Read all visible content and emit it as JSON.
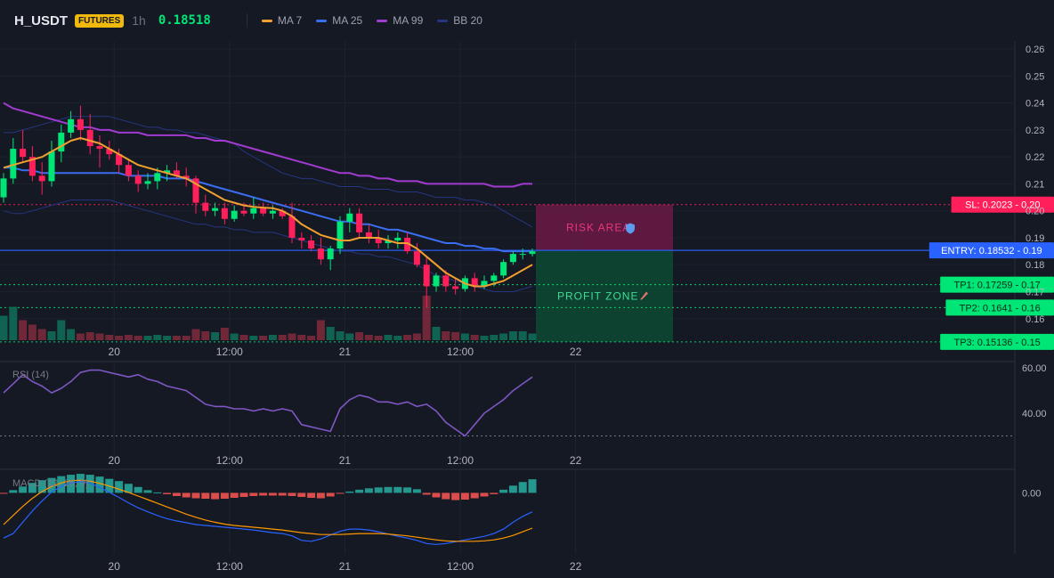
{
  "header": {
    "symbol": "H_USDT",
    "badge": "FUTURES",
    "timeframe": "1h",
    "price": "0.18518",
    "legend": [
      {
        "name": "MA 7",
        "color": "#f0a030"
      },
      {
        "name": "MA 25",
        "color": "#3a6df0"
      },
      {
        "name": "MA 99",
        "color": "#a23bd0"
      },
      {
        "name": "BB 20",
        "color": "#263580"
      }
    ]
  },
  "price_axis": {
    "ticks": [
      "0.26",
      "0.25",
      "0.24",
      "0.23",
      "0.22",
      "0.21",
      "0.20",
      "0.19",
      "0.18",
      "0.17",
      "0.16"
    ]
  },
  "time_axis": {
    "ticks": [
      "20",
      "12:00",
      "21",
      "12:00",
      "22"
    ]
  },
  "zones": {
    "risk_label": "RISK AREA",
    "profit_label": "PROFIT ZONE",
    "risk_color": "#6a1a45",
    "profit_color": "#0d4a33"
  },
  "levels": {
    "sl": {
      "label": "SL: 0.2023 - 0.20",
      "value": 0.2023,
      "color": "#ff1f5a"
    },
    "entry": {
      "label": "ENTRY: 0.18532 - 0.19",
      "value": 0.18532,
      "color": "#2962ff"
    },
    "tp": [
      {
        "label": "TP1: 0.17259 - 0.17",
        "value": 0.17259,
        "color": "#00e676"
      },
      {
        "label": "TP2: 0.1641 - 0.16",
        "value": 0.1641,
        "color": "#00e676"
      },
      {
        "label": "TP3: 0.15136 - 0.15",
        "value": 0.15136,
        "color": "#00e676"
      }
    ]
  },
  "rsi": {
    "label": "RSI (14)",
    "ticks": [
      "60.00",
      "40.00"
    ],
    "color": "#7e57c2"
  },
  "macd": {
    "label": "MACD (12, 26, 9)",
    "ticks": [
      "0.00"
    ]
  },
  "chart_data": {
    "type": "candlestick",
    "price_range": [
      0.152,
      0.263
    ],
    "candles": [
      [
        0.205,
        0.214,
        0.203,
        0.212
      ],
      [
        0.212,
        0.227,
        0.21,
        0.223
      ],
      [
        0.223,
        0.23,
        0.218,
        0.22
      ],
      [
        0.22,
        0.224,
        0.211,
        0.213
      ],
      [
        0.213,
        0.218,
        0.206,
        0.211
      ],
      [
        0.211,
        0.226,
        0.209,
        0.222
      ],
      [
        0.222,
        0.232,
        0.218,
        0.229
      ],
      [
        0.229,
        0.237,
        0.227,
        0.234
      ],
      [
        0.234,
        0.239,
        0.226,
        0.23
      ],
      [
        0.23,
        0.236,
        0.221,
        0.224
      ],
      [
        0.224,
        0.228,
        0.216,
        0.223
      ],
      [
        0.223,
        0.226,
        0.219,
        0.221
      ],
      [
        0.221,
        0.223,
        0.214,
        0.217
      ],
      [
        0.217,
        0.219,
        0.211,
        0.213
      ],
      [
        0.213,
        0.215,
        0.207,
        0.21
      ],
      [
        0.21,
        0.214,
        0.208,
        0.211
      ],
      [
        0.211,
        0.216,
        0.208,
        0.214
      ],
      [
        0.214,
        0.217,
        0.211,
        0.215
      ],
      [
        0.215,
        0.218,
        0.212,
        0.213
      ],
      [
        0.213,
        0.216,
        0.209,
        0.212
      ],
      [
        0.212,
        0.213,
        0.199,
        0.203
      ],
      [
        0.203,
        0.206,
        0.198,
        0.2
      ],
      [
        0.2,
        0.203,
        0.198,
        0.201
      ],
      [
        0.201,
        0.203,
        0.195,
        0.197
      ],
      [
        0.197,
        0.202,
        0.196,
        0.2
      ],
      [
        0.2,
        0.203,
        0.198,
        0.199
      ],
      [
        0.199,
        0.205,
        0.197,
        0.201
      ],
      [
        0.201,
        0.203,
        0.198,
        0.199
      ],
      [
        0.199,
        0.202,
        0.197,
        0.2
      ],
      [
        0.2,
        0.201,
        0.197,
        0.198
      ],
      [
        0.198,
        0.203,
        0.188,
        0.19
      ],
      [
        0.19,
        0.192,
        0.186,
        0.189
      ],
      [
        0.189,
        0.191,
        0.185,
        0.186
      ],
      [
        0.186,
        0.19,
        0.18,
        0.182
      ],
      [
        0.182,
        0.187,
        0.178,
        0.186
      ],
      [
        0.186,
        0.198,
        0.184,
        0.196
      ],
      [
        0.196,
        0.201,
        0.192,
        0.199
      ],
      [
        0.199,
        0.201,
        0.19,
        0.192
      ],
      [
        0.192,
        0.195,
        0.188,
        0.19
      ],
      [
        0.19,
        0.193,
        0.186,
        0.188
      ],
      [
        0.188,
        0.191,
        0.186,
        0.189
      ],
      [
        0.189,
        0.192,
        0.186,
        0.19
      ],
      [
        0.19,
        0.192,
        0.184,
        0.185
      ],
      [
        0.185,
        0.188,
        0.179,
        0.18
      ],
      [
        0.18,
        0.183,
        0.164,
        0.172
      ],
      [
        0.172,
        0.177,
        0.17,
        0.176
      ],
      [
        0.176,
        0.178,
        0.17,
        0.172
      ],
      [
        0.172,
        0.175,
        0.169,
        0.171
      ],
      [
        0.171,
        0.176,
        0.17,
        0.175
      ],
      [
        0.175,
        0.177,
        0.17,
        0.172
      ],
      [
        0.172,
        0.176,
        0.171,
        0.174
      ],
      [
        0.174,
        0.177,
        0.172,
        0.176
      ],
      [
        0.176,
        0.182,
        0.175,
        0.181
      ],
      [
        0.181,
        0.185,
        0.18,
        0.184
      ],
      [
        0.184,
        0.186,
        0.182,
        0.184
      ],
      [
        0.184,
        0.186,
        0.183,
        0.185
      ]
    ],
    "volume": [
      0.55,
      0.75,
      0.45,
      0.35,
      0.25,
      0.2,
      0.45,
      0.25,
      0.15,
      0.18,
      0.15,
      0.12,
      0.1,
      0.12,
      0.1,
      0.1,
      0.12,
      0.1,
      0.1,
      0.1,
      0.25,
      0.2,
      0.18,
      0.28,
      0.15,
      0.12,
      0.1,
      0.1,
      0.12,
      0.12,
      0.15,
      0.12,
      0.1,
      0.45,
      0.3,
      0.2,
      0.15,
      0.18,
      0.12,
      0.1,
      0.12,
      0.1,
      0.12,
      0.15,
      1.0,
      0.3,
      0.2,
      0.18,
      0.15,
      0.12,
      0.1,
      0.12,
      0.15,
      0.2,
      0.2,
      0.15
    ],
    "ma7": [
      0.216,
      0.217,
      0.218,
      0.219,
      0.22,
      0.222,
      0.224,
      0.226,
      0.227,
      0.226,
      0.225,
      0.223,
      0.221,
      0.219,
      0.217,
      0.216,
      0.215,
      0.214,
      0.213,
      0.212,
      0.21,
      0.208,
      0.206,
      0.204,
      0.203,
      0.202,
      0.2015,
      0.2012,
      0.201,
      0.2,
      0.198,
      0.195,
      0.193,
      0.191,
      0.19,
      0.189,
      0.189,
      0.19,
      0.19,
      0.19,
      0.189,
      0.188,
      0.188,
      0.186,
      0.183,
      0.18,
      0.177,
      0.175,
      0.173,
      0.172,
      0.172,
      0.173,
      0.174,
      0.176,
      0.178,
      0.18
    ],
    "ma25": [
      0.216,
      0.216,
      0.215,
      0.215,
      0.214,
      0.214,
      0.214,
      0.214,
      0.214,
      0.214,
      0.214,
      0.214,
      0.214,
      0.213,
      0.213,
      0.213,
      0.213,
      0.212,
      0.212,
      0.212,
      0.211,
      0.21,
      0.209,
      0.208,
      0.207,
      0.206,
      0.205,
      0.204,
      0.203,
      0.202,
      0.201,
      0.2,
      0.199,
      0.198,
      0.197,
      0.196,
      0.196,
      0.195,
      0.195,
      0.194,
      0.193,
      0.193,
      0.192,
      0.191,
      0.19,
      0.189,
      0.188,
      0.188,
      0.187,
      0.187,
      0.186,
      0.186,
      0.185,
      0.185,
      0.185,
      0.185
    ],
    "ma99": [
      0.24,
      0.238,
      0.237,
      0.236,
      0.235,
      0.234,
      0.233,
      0.232,
      0.231,
      0.231,
      0.23,
      0.23,
      0.229,
      0.229,
      0.229,
      0.228,
      0.228,
      0.228,
      0.228,
      0.228,
      0.227,
      0.227,
      0.226,
      0.226,
      0.225,
      0.224,
      0.223,
      0.222,
      0.221,
      0.22,
      0.219,
      0.218,
      0.217,
      0.216,
      0.215,
      0.214,
      0.214,
      0.213,
      0.213,
      0.212,
      0.212,
      0.211,
      0.211,
      0.211,
      0.21,
      0.21,
      0.21,
      0.21,
      0.21,
      0.21,
      0.21,
      0.209,
      0.209,
      0.209,
      0.21,
      0.21
    ],
    "bb_upper": [
      0.229,
      0.229,
      0.23,
      0.231,
      0.232,
      0.233,
      0.234,
      0.235,
      0.235,
      0.235,
      0.235,
      0.235,
      0.234,
      0.233,
      0.232,
      0.231,
      0.231,
      0.23,
      0.23,
      0.229,
      0.229,
      0.228,
      0.227,
      0.226,
      0.225,
      0.222,
      0.22,
      0.218,
      0.216,
      0.214,
      0.213,
      0.212,
      0.212,
      0.211,
      0.21,
      0.209,
      0.209,
      0.209,
      0.208,
      0.208,
      0.208,
      0.207,
      0.207,
      0.207,
      0.206,
      0.205,
      0.205,
      0.205,
      0.204,
      0.204,
      0.203,
      0.202,
      0.2,
      0.198,
      0.196,
      0.194
    ],
    "bb_lower": [
      0.2,
      0.199,
      0.199,
      0.2,
      0.201,
      0.202,
      0.203,
      0.204,
      0.204,
      0.204,
      0.204,
      0.204,
      0.203,
      0.202,
      0.201,
      0.2,
      0.199,
      0.198,
      0.197,
      0.196,
      0.195,
      0.195,
      0.194,
      0.194,
      0.193,
      0.193,
      0.192,
      0.192,
      0.192,
      0.191,
      0.19,
      0.189,
      0.188,
      0.187,
      0.186,
      0.185,
      0.185,
      0.184,
      0.184,
      0.183,
      0.183,
      0.182,
      0.181,
      0.18,
      0.178,
      0.176,
      0.175,
      0.174,
      0.173,
      0.172,
      0.171,
      0.17,
      0.17,
      0.17,
      0.171,
      0.172
    ],
    "rsi_values": [
      49,
      53,
      57,
      54,
      52,
      49,
      51,
      54,
      58,
      59,
      59,
      58,
      57,
      56,
      57,
      55,
      54,
      52,
      51,
      50,
      47,
      44,
      43,
      43,
      42,
      42,
      41,
      42,
      41,
      42,
      41,
      35,
      34,
      33,
      32,
      42,
      46,
      48,
      47,
      45,
      45,
      44,
      45,
      43,
      44,
      41,
      36,
      33,
      30,
      35,
      40,
      43,
      46,
      50,
      53,
      56
    ],
    "rsi_range": [
      20,
      62
    ],
    "macd_hist": [
      -0.02,
      0.06,
      0.14,
      0.22,
      0.28,
      0.33,
      0.37,
      0.4,
      0.42,
      0.4,
      0.36,
      0.31,
      0.26,
      0.2,
      0.13,
      0.06,
      0.01,
      -0.03,
      -0.07,
      -0.1,
      -0.12,
      -0.13,
      -0.14,
      -0.13,
      -0.11,
      -0.09,
      -0.07,
      -0.06,
      -0.06,
      -0.06,
      -0.07,
      -0.09,
      -0.11,
      -0.12,
      -0.08,
      -0.02,
      0.03,
      0.07,
      0.1,
      0.12,
      0.13,
      0.13,
      0.12,
      0.08,
      -0.04,
      -0.1,
      -0.14,
      -0.16,
      -0.15,
      -0.12,
      -0.08,
      -0.03,
      0.07,
      0.16,
      0.24,
      0.3
    ],
    "macd_line": [
      -1.0,
      -0.9,
      -0.65,
      -0.4,
      -0.18,
      0.02,
      0.14,
      0.22,
      0.25,
      0.21,
      0.12,
      0.01,
      -0.1,
      -0.22,
      -0.33,
      -0.42,
      -0.5,
      -0.57,
      -0.62,
      -0.66,
      -0.7,
      -0.72,
      -0.74,
      -0.76,
      -0.78,
      -0.8,
      -0.82,
      -0.85,
      -0.88,
      -0.9,
      -0.95,
      -1.05,
      -1.07,
      -1.02,
      -0.93,
      -0.85,
      -0.8,
      -0.8,
      -0.82,
      -0.86,
      -0.91,
      -0.96,
      -1.0,
      -1.05,
      -1.12,
      -1.14,
      -1.12,
      -1.08,
      -1.04,
      -1.0,
      -0.96,
      -0.9,
      -0.8,
      -0.65,
      -0.52,
      -0.42
    ],
    "macd_signal": [
      -0.7,
      -0.5,
      -0.3,
      -0.12,
      0.03,
      0.14,
      0.22,
      0.27,
      0.28,
      0.26,
      0.21,
      0.15,
      0.08,
      0.01,
      -0.07,
      -0.15,
      -0.23,
      -0.31,
      -0.39,
      -0.47,
      -0.54,
      -0.6,
      -0.65,
      -0.69,
      -0.72,
      -0.74,
      -0.76,
      -0.78,
      -0.8,
      -0.82,
      -0.85,
      -0.88,
      -0.9,
      -0.92,
      -0.92,
      -0.92,
      -0.91,
      -0.9,
      -0.9,
      -0.9,
      -0.91,
      -0.93,
      -0.95,
      -0.98,
      -1.01,
      -1.04,
      -1.06,
      -1.07,
      -1.07,
      -1.07,
      -1.06,
      -1.04,
      -1.0,
      -0.94,
      -0.86,
      -0.78
    ],
    "macd_range": [
      -1.35,
      0.5
    ],
    "time_ticks": [
      {
        "label": "20",
        "index": 11.5
      },
      {
        "label": "12:00",
        "index": 23.5
      },
      {
        "label": "21",
        "index": 35.5
      },
      {
        "label": "12:00",
        "index": 47.5
      },
      {
        "label": "22",
        "index": 59.5
      }
    ]
  }
}
